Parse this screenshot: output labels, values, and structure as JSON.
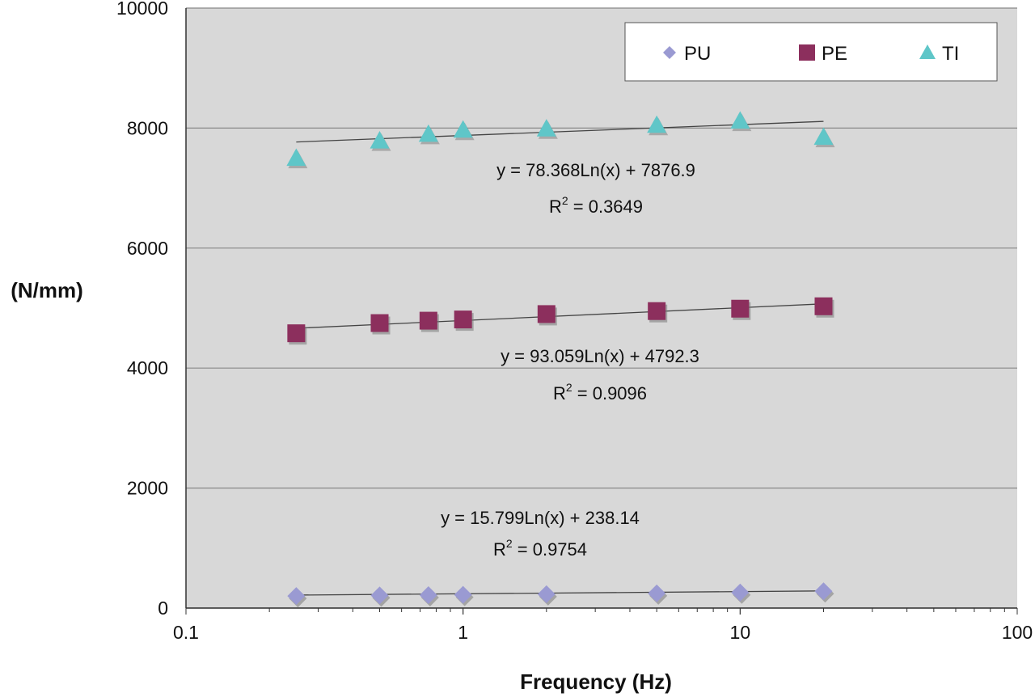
{
  "chart_data": {
    "type": "scatter",
    "title": "",
    "xlabel": "Frequency (Hz)",
    "ylabel": "(N/mm)",
    "x_scale": "log",
    "xlim": [
      0.1,
      100
    ],
    "ylim": [
      0,
      10000
    ],
    "x_ticks": [
      "0.1",
      "1",
      "10",
      "100"
    ],
    "y_ticks": [
      "0",
      "2000",
      "4000",
      "6000",
      "8000",
      "10000"
    ],
    "grid": "horizontal major gridlines",
    "legend_position": "top-right",
    "series": [
      {
        "name": "PU",
        "marker": "diamond",
        "color": "#9a9ad2",
        "x": [
          0.25,
          0.5,
          0.75,
          1,
          2,
          5,
          10,
          20
        ],
        "y": [
          200,
          210,
          215,
          220,
          230,
          245,
          260,
          280
        ],
        "fit": {
          "type": "log",
          "a": 15.799,
          "b": 238.14,
          "equation": "y = 15.799Ln(x) + 238.14",
          "r2_label": "R",
          "r2_exp": "2",
          "r2_value": " = 0.9754"
        }
      },
      {
        "name": "PE",
        "marker": "square",
        "color": "#8c2f5d",
        "x": [
          0.25,
          0.5,
          0.75,
          1,
          2,
          5,
          10,
          20
        ],
        "y": [
          4580,
          4750,
          4790,
          4810,
          4900,
          4950,
          4990,
          5030
        ],
        "fit": {
          "type": "log",
          "a": 93.059,
          "b": 4792.3,
          "equation": "y = 93.059Ln(x) + 4792.3",
          "r2_label": "R",
          "r2_exp": "2",
          "r2_value": " = 0.9096"
        }
      },
      {
        "name": "TI",
        "marker": "triangle",
        "color": "#5fc6c8",
        "x": [
          0.25,
          0.5,
          0.75,
          1,
          2,
          5,
          10,
          20
        ],
        "y": [
          7500,
          7790,
          7900,
          7970,
          7990,
          8050,
          8120,
          7850
        ],
        "fit": {
          "type": "log",
          "a": 78.368,
          "b": 7876.9,
          "equation": "y = 78.368Ln(x) + 7876.9",
          "r2_label": "R",
          "r2_exp": "2",
          "r2_value": " = 0.3649"
        }
      }
    ]
  },
  "colors": {
    "plot_background": "#d8d8d8",
    "gridline": "#888888",
    "trendline": "#444444"
  }
}
